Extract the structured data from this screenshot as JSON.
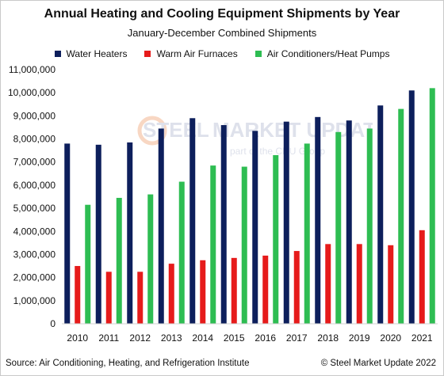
{
  "chart_data": {
    "type": "bar",
    "title": "Annual Heating and Cooling Equipment Shipments by Year",
    "subtitle": "January-December Combined Shipments",
    "categories": [
      "2010",
      "2011",
      "2012",
      "2013",
      "2014",
      "2015",
      "2016",
      "2017",
      "2018",
      "2019",
      "2020",
      "2021"
    ],
    "series": [
      {
        "name": "Water Heaters",
        "color": "#0d1f5c",
        "values": [
          7800000,
          7750000,
          7850000,
          8450000,
          8900000,
          8600000,
          8350000,
          8750000,
          8950000,
          8800000,
          9450000,
          10100000
        ]
      },
      {
        "name": "Warm Air Furnaces",
        "color": "#e61b1b",
        "values": [
          2500000,
          2250000,
          2250000,
          2600000,
          2750000,
          2850000,
          2950000,
          3150000,
          3450000,
          3450000,
          3400000,
          4050000
        ]
      },
      {
        "name": "Air Conditioners/Heat Pumps",
        "color": "#2ebd52",
        "values": [
          5150000,
          5450000,
          5600000,
          6150000,
          6850000,
          6800000,
          7300000,
          7800000,
          8300000,
          8450000,
          9300000,
          10200000
        ]
      }
    ],
    "ylim": [
      0,
      11000000
    ],
    "yticks": [
      "0",
      "1,000,000",
      "2,000,000",
      "3,000,000",
      "4,000,000",
      "5,000,000",
      "6,000,000",
      "7,000,000",
      "8,000,000",
      "9,000,000",
      "10,000,000",
      "11,000,000"
    ],
    "xlabel": "",
    "ylabel": "",
    "grid": false,
    "legend": "top"
  },
  "footer": {
    "source": "Source: Air Conditioning, Heating, and Refrigeration Institute",
    "copyright": "© Steel Market Update 2022"
  },
  "watermark": {
    "brand_left": "STEEL",
    "brand_right": "MARKET UPDATE",
    "tagline": "part of the CRU Group"
  }
}
